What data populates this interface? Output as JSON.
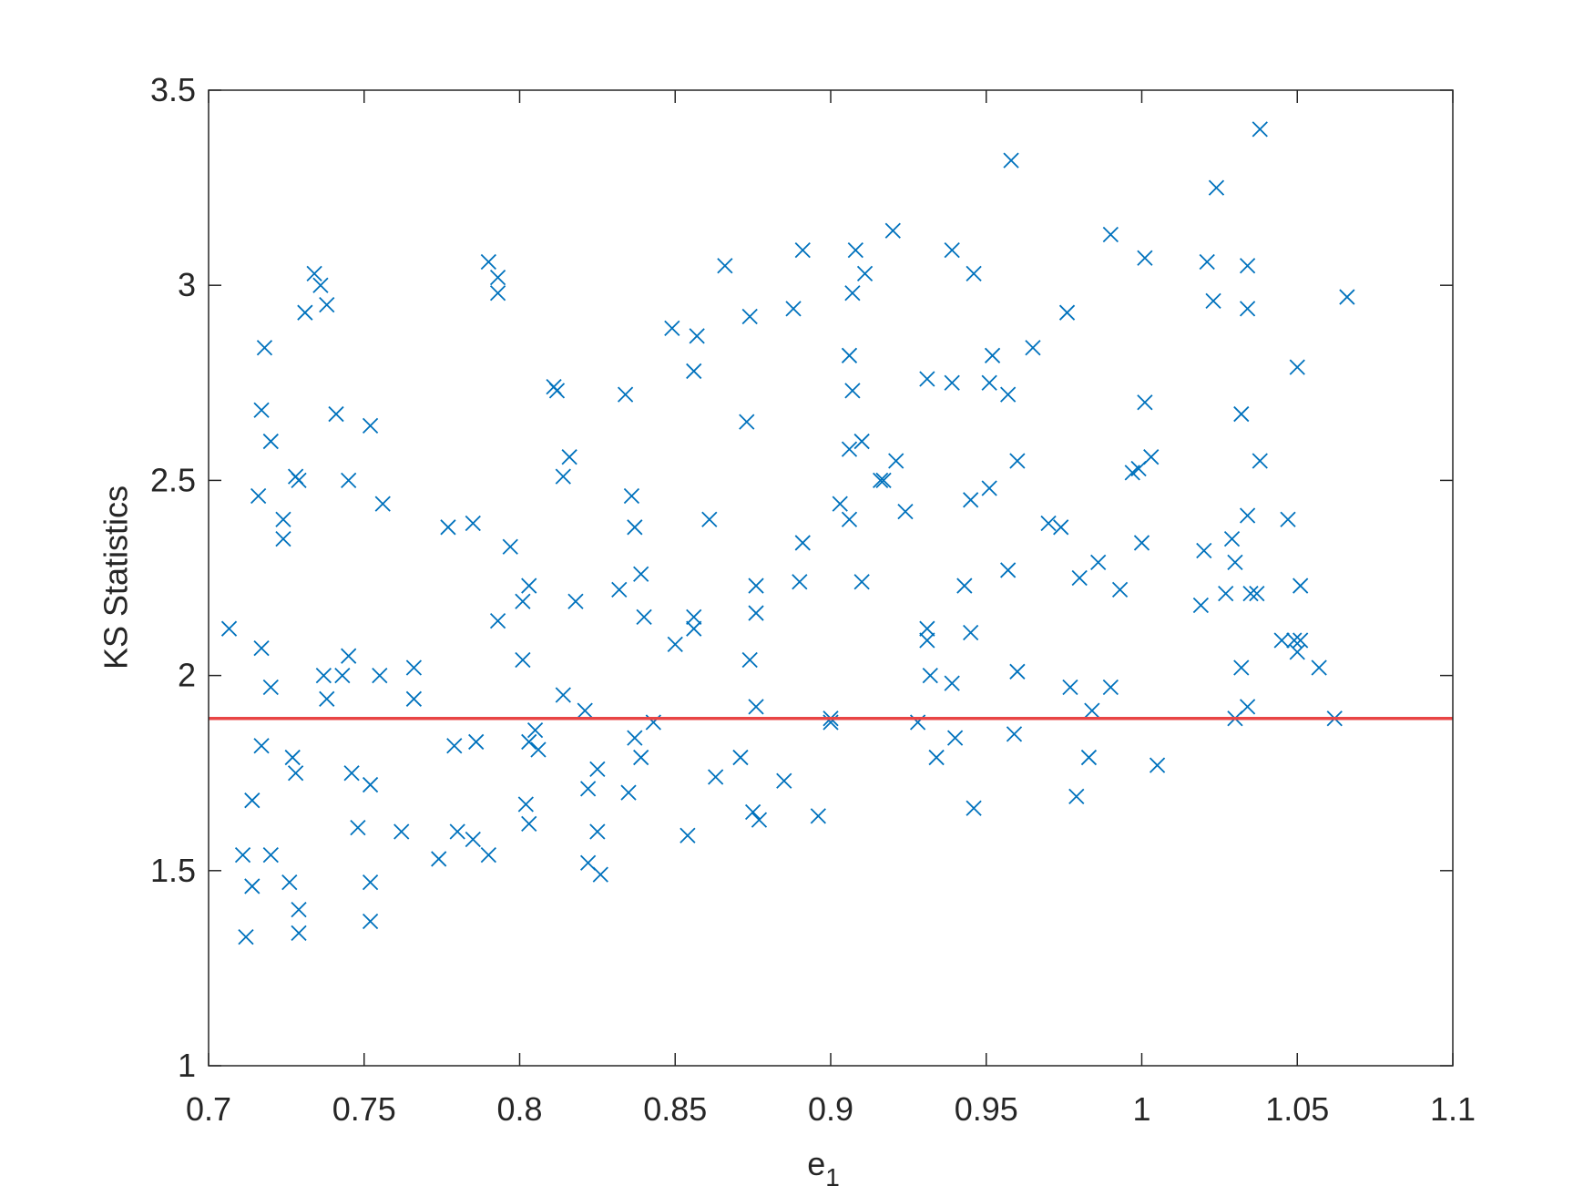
{
  "chart_data": {
    "type": "scatter",
    "y_label": "KS Statistics",
    "x_label": "e",
    "x_label_subscript": "1",
    "xlim": [
      0.7,
      1.1
    ],
    "xticks": [
      0.7,
      0.75,
      0.8,
      0.85,
      0.9,
      0.95,
      1,
      1.05,
      1.1
    ],
    "ylim": [
      1,
      3.5
    ],
    "yticks": [
      1,
      1.5,
      2,
      2.5,
      3,
      3.5
    ],
    "marker": "x",
    "reference_line": {
      "value": 1.89,
      "color": "#e84545"
    },
    "series": [
      {
        "color": "#0072bd",
        "x": [
          0.7066,
          0.711,
          0.712,
          0.714,
          0.714,
          0.716,
          0.717,
          0.717,
          0.717,
          0.718,
          0.72,
          0.72,
          0.72,
          0.724,
          0.724,
          0.726,
          0.727,
          0.728,
          0.728,
          0.729,
          0.729,
          0.729,
          0.731,
          0.734,
          0.736,
          0.738,
          0.737,
          0.738,
          0.741,
          0.743,
          0.745,
          0.745,
          0.746,
          0.748,
          0.752,
          0.752,
          0.752,
          0.752,
          0.755,
          0.756,
          0.762,
          0.766,
          0.766,
          0.774,
          0.777,
          0.779,
          0.78,
          0.785,
          0.785,
          0.786,
          0.79,
          0.79,
          0.793,
          0.793,
          0.793,
          0.797,
          0.801,
          0.801,
          0.803,
          0.802,
          0.803,
          0.803,
          0.805,
          0.806,
          0.811,
          0.812,
          0.814,
          0.816,
          0.814,
          0.818,
          0.821,
          0.822,
          0.822,
          0.825,
          0.825,
          0.826,
          0.832,
          0.834,
          0.835,
          0.836,
          0.837,
          0.837,
          0.839,
          0.839,
          0.84,
          0.843,
          0.849,
          0.85,
          0.854,
          0.856,
          0.856,
          0.857,
          0.856,
          0.861,
          0.863,
          0.866,
          0.871,
          0.873,
          0.874,
          0.874,
          0.875,
          0.876,
          0.876,
          0.876,
          0.877,
          0.885,
          0.888,
          0.89,
          0.891,
          0.891,
          0.896,
          0.9,
          0.9,
          0.903,
          0.906,
          0.906,
          0.906,
          0.907,
          0.907,
          0.908,
          0.91,
          0.91,
          0.911,
          0.916,
          0.917,
          0.92,
          0.921,
          0.924,
          0.928,
          0.931,
          0.931,
          0.931,
          0.932,
          0.934,
          0.939,
          0.939,
          0.939,
          0.94,
          0.943,
          0.945,
          0.945,
          0.946,
          0.946,
          0.951,
          0.952,
          0.951,
          0.957,
          0.957,
          0.958,
          0.959,
          0.96,
          0.96,
          0.965,
          0.97,
          0.974,
          0.976,
          0.977,
          0.979,
          0.98,
          0.984,
          0.983,
          0.986,
          0.99,
          0.99,
          0.993,
          0.997,
          0.999,
          1.0,
          1.001,
          1.001,
          1.003,
          1.005,
          1.019,
          1.02,
          1.021,
          1.023,
          1.024,
          1.027,
          1.029,
          1.03,
          1.03,
          1.032,
          1.032,
          1.034,
          1.034,
          1.034,
          1.034,
          1.035,
          1.037,
          1.038,
          1.038,
          1.047,
          1.045,
          1.049,
          1.05,
          1.051,
          1.051,
          1.05,
          1.057,
          1.062,
          1.066
        ],
        "values": [
          2.12,
          1.54,
          1.33,
          1.68,
          1.46,
          2.46,
          2.68,
          2.07,
          1.82,
          2.84,
          2.6,
          1.97,
          1.54,
          2.4,
          2.35,
          1.47,
          1.79,
          1.75,
          2.51,
          2.5,
          1.4,
          1.34,
          2.93,
          3.03,
          3.0,
          2.95,
          2.0,
          1.94,
          2.67,
          2.0,
          2.05,
          2.5,
          1.75,
          1.61,
          2.64,
          1.72,
          1.47,
          1.37,
          2.0,
          2.44,
          1.6,
          2.02,
          1.94,
          1.53,
          2.38,
          1.82,
          1.6,
          2.39,
          1.58,
          1.83,
          3.06,
          1.54,
          3.02,
          2.98,
          2.14,
          2.33,
          2.19,
          2.04,
          2.23,
          1.67,
          1.62,
          1.83,
          1.86,
          1.81,
          2.74,
          2.73,
          2.51,
          2.56,
          1.95,
          2.19,
          1.91,
          1.71,
          1.52,
          1.76,
          1.6,
          1.49,
          2.22,
          2.72,
          1.7,
          2.46,
          2.38,
          1.84,
          2.26,
          1.79,
          2.15,
          1.88,
          2.89,
          2.08,
          1.59,
          2.15,
          2.12,
          2.87,
          2.78,
          2.4,
          1.74,
          3.05,
          1.79,
          2.65,
          2.92,
          2.04,
          1.65,
          2.16,
          1.92,
          2.23,
          1.63,
          1.73,
          2.94,
          2.24,
          2.34,
          3.09,
          1.64,
          1.89,
          1.88,
          2.44,
          2.4,
          2.58,
          2.82,
          2.98,
          2.73,
          3.09,
          2.6,
          2.24,
          3.03,
          2.5,
          2.5,
          3.14,
          2.55,
          2.42,
          1.88,
          2.76,
          2.12,
          2.09,
          2.0,
          1.79,
          2.75,
          1.98,
          3.09,
          1.84,
          2.23,
          2.45,
          2.11,
          3.03,
          1.66,
          2.48,
          2.82,
          2.75,
          2.27,
          2.72,
          3.32,
          1.85,
          2.55,
          2.01,
          2.84,
          2.39,
          2.38,
          2.93,
          1.97,
          1.69,
          2.25,
          1.91,
          1.79,
          2.29,
          1.97,
          3.13,
          2.22,
          2.52,
          2.53,
          2.34,
          2.7,
          3.07,
          2.56,
          1.77,
          2.18,
          2.32,
          3.06,
          2.96,
          3.25,
          2.21,
          2.35,
          1.89,
          2.29,
          2.02,
          2.67,
          2.94,
          2.41,
          1.92,
          3.05,
          2.21,
          2.21,
          2.55,
          3.4,
          2.4,
          2.09,
          2.09,
          2.06,
          2.23,
          2.09,
          2.79,
          2.02,
          1.89,
          2.97
        ]
      }
    ]
  }
}
